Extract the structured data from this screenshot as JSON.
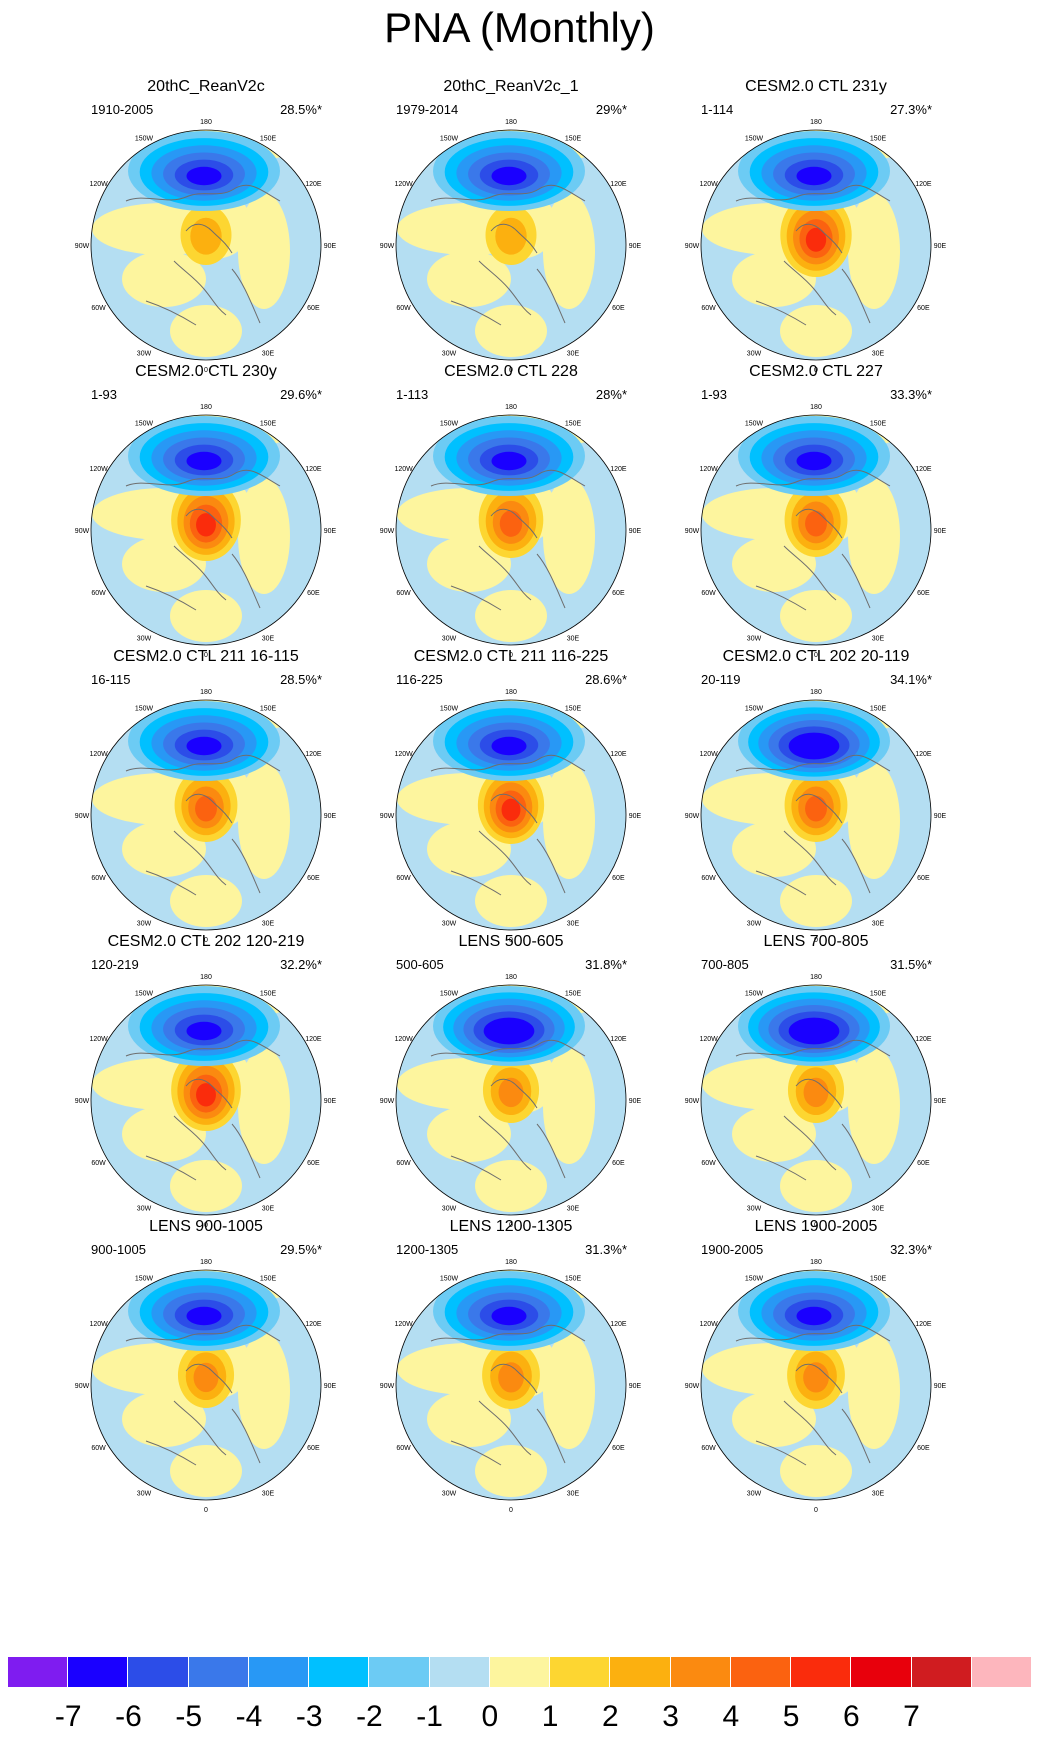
{
  "title": "PNA (Monthly)",
  "longitude_labels": [
    "180",
    "150E",
    "120E",
    "90E",
    "60E",
    "30E",
    "0",
    "30W",
    "60W",
    "90W",
    "120W",
    "150W"
  ],
  "panels": [
    {
      "title": "20thC_ReanV2c",
      "period": "1910-2005",
      "variance": "28.5%*",
      "low_strength": 0.7,
      "high_strength": 0.3
    },
    {
      "title": "20thC_ReanV2c_1",
      "period": "1979-2014",
      "variance": "29%*",
      "low_strength": 0.7,
      "high_strength": 0.3
    },
    {
      "title": "CESM2.0 CTL 231y",
      "period": "1-114",
      "variance": "27.3%*",
      "low_strength": 0.72,
      "high_strength": 0.9
    },
    {
      "title": "CESM2.0 CTL 230y",
      "period": "1-93",
      "variance": "29.6%*",
      "low_strength": 0.78,
      "high_strength": 0.85
    },
    {
      "title": "CESM2.0 CTL 228",
      "period": "1-113",
      "variance": "28%*",
      "low_strength": 0.75,
      "high_strength": 0.7
    },
    {
      "title": "CESM2.0 CTL 227",
      "period": "1-93",
      "variance": "33.3%*",
      "low_strength": 0.8,
      "high_strength": 0.65
    },
    {
      "title": "CESM2.0 CTL 211 16-115",
      "period": "16-115",
      "variance": "28.5%*",
      "low_strength": 0.8,
      "high_strength": 0.65
    },
    {
      "title": "CESM2.0 CTL 211 116-225",
      "period": "116-225",
      "variance": "28.6%*",
      "low_strength": 0.75,
      "high_strength": 0.75
    },
    {
      "title": "CESM2.0 CTL 202 20-119",
      "period": "20-119",
      "variance": "34.1%*",
      "low_strength": 0.85,
      "high_strength": 0.65
    },
    {
      "title": "CESM2.0 CTL 202 120-219",
      "period": "120-219",
      "variance": "32.2%*",
      "low_strength": 0.8,
      "high_strength": 0.85
    },
    {
      "title": "LENS 500-605",
      "period": "500-605",
      "variance": "31.8%*",
      "low_strength": 0.82,
      "high_strength": 0.45
    },
    {
      "title": "LENS 700-805",
      "period": "700-805",
      "variance": "31.5%*",
      "low_strength": 0.82,
      "high_strength": 0.45
    },
    {
      "title": "LENS 900-1005",
      "period": "900-1005",
      "variance": "29.5%*",
      "low_strength": 0.75,
      "high_strength": 0.45
    },
    {
      "title": "LENS 1200-1305",
      "period": "1200-1305",
      "variance": "31.3%*",
      "low_strength": 0.75,
      "high_strength": 0.5
    },
    {
      "title": "LENS 1900-2005",
      "period": "1900-2005",
      "variance": "32.3%*",
      "low_strength": 0.8,
      "high_strength": 0.5
    }
  ],
  "colorbar": {
    "colors": [
      "#7f1cf0",
      "#1a00ff",
      "#2c4de8",
      "#3a78ea",
      "#2898f5",
      "#00c0ff",
      "#6ccbf4",
      "#b4def2",
      "#fdf59e",
      "#fdd631",
      "#fcb00f",
      "#fb8a10",
      "#fb6210",
      "#fa2c0c",
      "#e8000c",
      "#d01c20",
      "#fdb6bd"
    ],
    "labels": [
      "-7",
      "-6",
      "-5",
      "-4",
      "-3",
      "-2",
      "-1",
      "0",
      "1",
      "2",
      "3",
      "4",
      "5",
      "6",
      "7"
    ]
  }
}
